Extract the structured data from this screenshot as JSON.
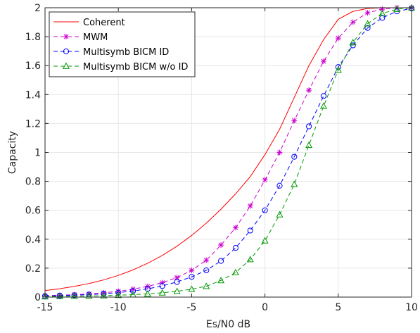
{
  "chart_data": {
    "type": "line",
    "xlabel": "Es/N0 dB",
    "ylabel": "Capacity",
    "xlim": [
      -15,
      10
    ],
    "ylim": [
      0,
      2
    ],
    "xticks": [
      -15,
      -10,
      -5,
      0,
      5,
      10
    ],
    "yticks": [
      0,
      0.2,
      0.4,
      0.6,
      0.8,
      1,
      1.2,
      1.4,
      1.6,
      1.8,
      2
    ],
    "xtick_labels": [
      "-15",
      "-10",
      "-5",
      "0",
      "5",
      "10"
    ],
    "ytick_labels": [
      "0",
      "0.2",
      "0.4",
      "0.6",
      "0.8",
      "1",
      "1.2",
      "1.4",
      "1.6",
      "1.8",
      "2"
    ],
    "grid": true,
    "legend_position": "top-left",
    "x": [
      -15,
      -14,
      -13,
      -12,
      -11,
      -10,
      -9,
      -8,
      -7,
      -6,
      -5,
      -4,
      -3,
      -2,
      -1,
      0,
      1,
      2,
      3,
      4,
      5,
      6,
      7,
      8,
      9,
      10
    ],
    "series": [
      {
        "name": "Coherent",
        "color": "#ff0000",
        "line": "solid",
        "marker": "none",
        "values": [
          0.045,
          0.058,
          0.074,
          0.094,
          0.119,
          0.15,
          0.188,
          0.234,
          0.288,
          0.352,
          0.426,
          0.511,
          0.607,
          0.714,
          0.833,
          0.985,
          1.16,
          1.38,
          1.6,
          1.78,
          1.92,
          1.975,
          1.995,
          2.0,
          2.0,
          2.0
        ]
      },
      {
        "name": "MWM",
        "color": "#cc00cc",
        "line": "dashed",
        "marker": "star",
        "values": [
          0.01,
          0.013,
          0.017,
          0.022,
          0.03,
          0.04,
          0.055,
          0.074,
          0.1,
          0.135,
          0.185,
          0.255,
          0.36,
          0.48,
          0.63,
          0.81,
          1.0,
          1.22,
          1.43,
          1.63,
          1.79,
          1.9,
          1.965,
          1.99,
          2.0,
          2.0
        ]
      },
      {
        "name": "Multisymb BICM ID",
        "color": "#0000ff",
        "line": "dashed",
        "marker": "circle",
        "values": [
          0.007,
          0.01,
          0.013,
          0.017,
          0.023,
          0.031,
          0.042,
          0.057,
          0.077,
          0.105,
          0.14,
          0.185,
          0.25,
          0.34,
          0.46,
          0.6,
          0.77,
          0.97,
          1.18,
          1.39,
          1.59,
          1.74,
          1.86,
          1.93,
          1.975,
          1.995
        ]
      },
      {
        "name": "Multisymb BICM w/o ID",
        "color": "#009900",
        "line": "dashed",
        "marker": "triangle",
        "values": [
          0.003,
          0.005,
          0.006,
          0.008,
          0.01,
          0.013,
          0.017,
          0.022,
          0.03,
          0.04,
          0.055,
          0.075,
          0.115,
          0.17,
          0.26,
          0.39,
          0.57,
          0.78,
          1.05,
          1.32,
          1.57,
          1.76,
          1.89,
          1.96,
          1.99,
          2.0
        ]
      }
    ]
  }
}
